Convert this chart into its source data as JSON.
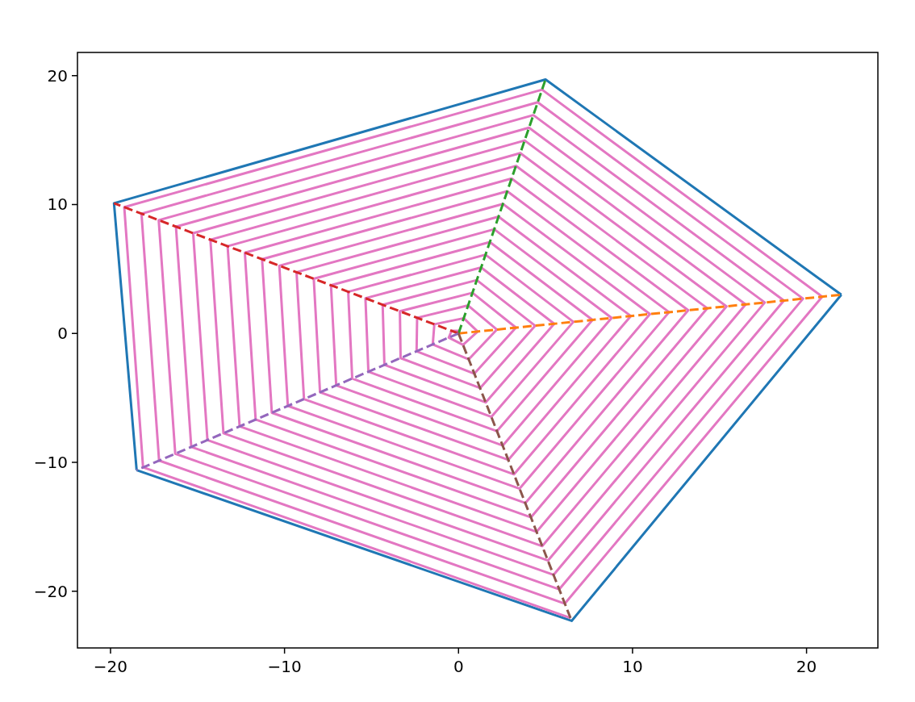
{
  "chart_data": {
    "type": "line",
    "xlim": [
      -21.9,
      24.1
    ],
    "ylim": [
      -24.4,
      21.8
    ],
    "xticks": [
      {
        "value": -20,
        "label": "−20"
      },
      {
        "value": -10,
        "label": "−10"
      },
      0,
      10,
      20
    ],
    "yticks": [
      {
        "value": -20,
        "label": "−20"
      },
      {
        "value": -10,
        "label": "−10"
      },
      0,
      10,
      20
    ],
    "grid": false,
    "marker": "none",
    "line_style": "solid",
    "series": [
      {
        "color": "#1f77b4",
        "x": [
          22,
          5,
          -19.8,
          -18.5
        ],
        "values": [
          3,
          19.7,
          10.1,
          -10.6
        ]
      },
      {
        "color": "#1f77b4",
        "x": [
          -18.5,
          6.5,
          22
        ],
        "values": [
          -10.6,
          -22.3,
          3
        ]
      },
      {
        "color": "#e377c2",
        "x": [
          0,
          0.05,
          -0.4,
          -0.56,
          0.26,
          1.1,
          0.3,
          -1.39,
          -1.48,
          0.59,
          2.2,
          0.55,
          -2.38,
          -2.41,
          0.91,
          3.3,
          0.8,
          -3.37,
          -3.33,
          1.24,
          4.4,
          1.05,
          -4.36,
          -4.26,
          1.56,
          5.5,
          1.3,
          -5.35,
          -5.18,
          1.89,
          6.6,
          1.55,
          -6.34,
          -6.11,
          2.21,
          7.7,
          1.8,
          -7.33,
          -7.03,
          2.54,
          8.8,
          2.05,
          -8.32,
          -7.96,
          2.86,
          9.9,
          2.3,
          -9.31,
          -8.88,
          3.19,
          11,
          2.55,
          -10.3,
          -9.81,
          3.51,
          12.1,
          2.8,
          -11.29,
          -10.73,
          3.84,
          13.2,
          3.05,
          -12.28,
          -11.66,
          4.16,
          14.3,
          3.3,
          -13.27,
          -12.58,
          4.49,
          15.4,
          3.55,
          -14.26,
          -13.51,
          4.81,
          16.5,
          3.8,
          -15.25,
          -14.43,
          5.14,
          17.6,
          4.05,
          -16.24,
          -15.36,
          5.46,
          18.7,
          4.3,
          -17.23,
          -16.28,
          5.79,
          19.8,
          4.55,
          -18.22,
          -17.21,
          6.11,
          20.9,
          4.8,
          -19.21,
          -18.13,
          6.44
        ],
        "values": [
          0,
          0.2,
          0.2,
          -0.32,
          -0.89,
          0.15,
          1.18,
          0.71,
          -0.85,
          -2.01,
          0.3,
          2.17,
          1.21,
          -1.38,
          -3.12,
          0.45,
          3.15,
          1.72,
          -1.91,
          -4.24,
          0.6,
          4.14,
          2.22,
          -2.44,
          -5.35,
          0.75,
          5.12,
          2.73,
          -2.97,
          -6.47,
          0.9,
          6.11,
          3.23,
          -3.5,
          -7.58,
          1.05,
          7.09,
          3.74,
          -4.03,
          -8.7,
          1.2,
          8.08,
          4.24,
          -4.56,
          -9.81,
          1.35,
          9.06,
          4.75,
          -5.09,
          -10.93,
          1.5,
          10.05,
          5.25,
          -5.62,
          -12.04,
          1.65,
          11.03,
          5.76,
          -6.15,
          -13.16,
          1.8,
          12.02,
          6.26,
          -6.68,
          -14.27,
          1.95,
          13,
          6.77,
          -7.21,
          -15.39,
          2.1,
          13.99,
          7.27,
          -7.74,
          -16.5,
          2.25,
          14.97,
          7.78,
          -8.27,
          -17.62,
          2.4,
          15.96,
          8.28,
          -8.8,
          -18.73,
          2.55,
          16.94,
          8.79,
          -9.33,
          -19.85,
          2.7,
          17.93,
          9.29,
          -9.86,
          -20.96,
          2.85,
          18.91,
          9.8,
          -10.39,
          -22.08
        ]
      },
      {
        "color": "#ff7f0e",
        "line_style": "dashed",
        "x": [
          0,
          22
        ],
        "values": [
          0,
          3
        ]
      },
      {
        "color": "#2ca02c",
        "line_style": "dashed",
        "x": [
          0,
          5
        ],
        "values": [
          0,
          19.7
        ]
      },
      {
        "color": "#d62728",
        "line_style": "dashed",
        "x": [
          0,
          -19.8
        ],
        "values": [
          0,
          10.1
        ]
      },
      {
        "color": "#9467bd",
        "line_style": "dashed",
        "x": [
          0,
          -18.5
        ],
        "values": [
          0,
          -10.6
        ]
      },
      {
        "color": "#8c564b",
        "line_style": "dashed",
        "x": [
          0,
          6.5
        ],
        "values": [
          0,
          -22.3
        ]
      }
    ]
  }
}
